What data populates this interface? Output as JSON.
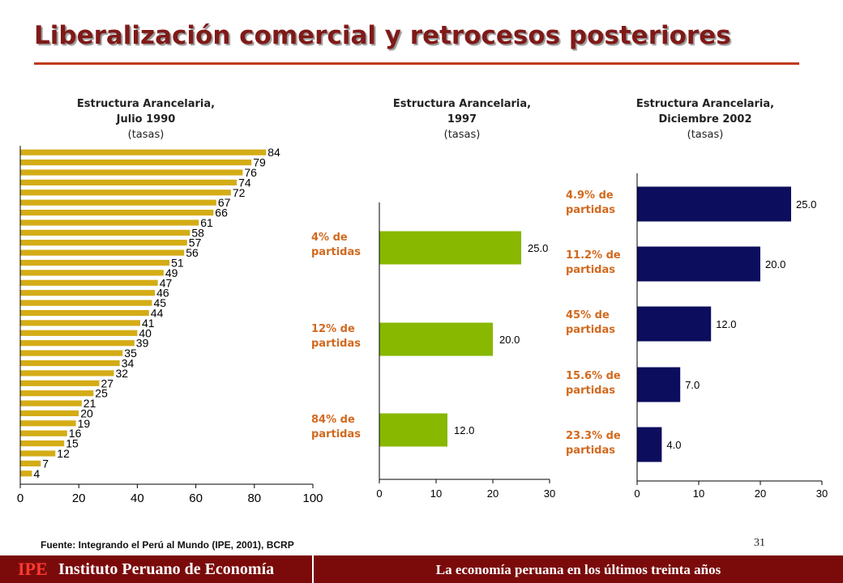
{
  "page": {
    "title": "Liberalización comercial y retrocesos posteriores",
    "source": "Fuente: Integrando el Perú al Mundo (IPE, 2001), BCRP",
    "page_number": "31",
    "footer": {
      "logo": "IPE",
      "institution": "Instituto Peruano de Economía",
      "tagline": "La economía peruana en los últimos treinta años"
    }
  },
  "chart_data": [
    {
      "type": "bar",
      "orientation": "horizontal",
      "title_line1": "Estructura Arancelaria,",
      "title_line2": "Julio 1990",
      "subtitle": "(tasas)",
      "color": "#d4ac16",
      "values": [
        84,
        79,
        76,
        74,
        72,
        67,
        66,
        61,
        58,
        57,
        56,
        51,
        49,
        47,
        46,
        45,
        44,
        41,
        40,
        39,
        35,
        34,
        32,
        27,
        25,
        21,
        20,
        19,
        16,
        15,
        12,
        7,
        4
      ],
      "xlim": [
        0,
        100
      ],
      "xticks": [
        0,
        20,
        40,
        60,
        80,
        100
      ]
    },
    {
      "type": "bar",
      "orientation": "horizontal",
      "title_line1": "Estructura Arancelaria,",
      "title_line2": "1997",
      "subtitle": "(tasas)",
      "color": "#88b800",
      "values": [
        25.0,
        20.0,
        12.0
      ],
      "value_labels": [
        "25.0",
        "20.0",
        "12.0"
      ],
      "annotations": [
        [
          "4% de",
          "partidas"
        ],
        [
          "12% de",
          "partidas"
        ],
        [
          "84% de",
          "partidas"
        ]
      ],
      "xlim": [
        0,
        30
      ],
      "xticks": [
        0,
        10,
        20,
        30
      ]
    },
    {
      "type": "bar",
      "orientation": "horizontal",
      "title_line1": "Estructura Arancelaria,",
      "title_line2": "Diciembre 2002",
      "subtitle": "(tasas)",
      "color": "#0d0d5e",
      "values": [
        25.0,
        20.0,
        12.0,
        7.0,
        4.0
      ],
      "value_labels": [
        "25.0",
        "20.0",
        "12.0",
        "7.0",
        "4.0"
      ],
      "annotations": [
        [
          "4.9% de",
          "partidas"
        ],
        [
          "11.2% de",
          "partidas"
        ],
        [
          "45% de",
          "partidas"
        ],
        [
          "15.6% de",
          "partidas"
        ],
        [
          "23.3% de",
          "partidas"
        ]
      ],
      "xlim": [
        0,
        30
      ],
      "xticks": [
        0,
        10,
        20,
        30
      ]
    }
  ],
  "colors": {
    "title": "#7f1a18",
    "rule": "#c1391a",
    "annotation": "#d2691e",
    "footer_bg": "#7b0b0b"
  }
}
